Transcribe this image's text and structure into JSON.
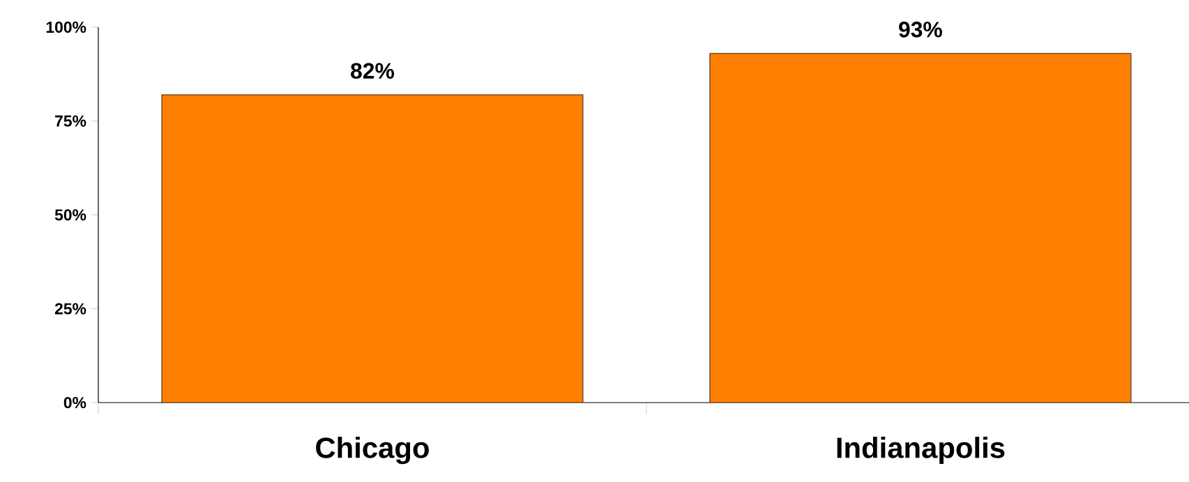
{
  "chart_data": {
    "type": "bar",
    "categories": [
      "Chicago",
      "Indianapolis"
    ],
    "values": [
      82,
      93
    ],
    "value_labels": [
      "82%",
      "93%"
    ],
    "color": "#ff7f00",
    "ylim": [
      0,
      100
    ],
    "yticks": [
      {
        "value": 0,
        "label": "0%"
      },
      {
        "value": 25,
        "label": "25%"
      },
      {
        "value": 50,
        "label": "50%"
      },
      {
        "value": 75,
        "label": "75%"
      },
      {
        "value": 100,
        "label": "100%"
      }
    ],
    "grid": false
  }
}
